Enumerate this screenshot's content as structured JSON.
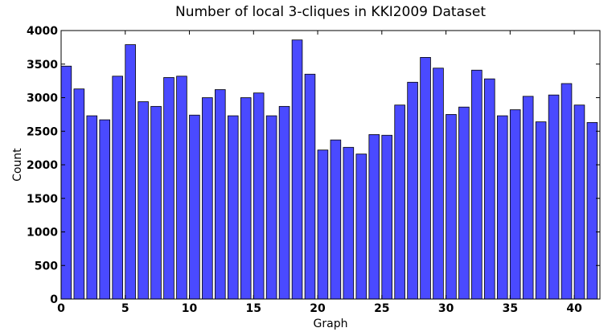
{
  "chart_data": {
    "type": "bar",
    "title": "Number of local 3-cliques in KKI2009 Dataset",
    "xlabel": "Graph",
    "ylabel": "Count",
    "xlim": [
      0,
      42
    ],
    "ylim": [
      0,
      4000
    ],
    "xticks": [
      0,
      5,
      10,
      15,
      20,
      25,
      30,
      35,
      40
    ],
    "yticks": [
      0,
      500,
      1000,
      1500,
      2000,
      2500,
      3000,
      3500,
      4000
    ],
    "bar_color": "#4a4aff",
    "bar_width": 0.8,
    "x": [
      0,
      1,
      2,
      3,
      4,
      5,
      6,
      7,
      8,
      9,
      10,
      11,
      12,
      13,
      14,
      15,
      16,
      17,
      18,
      19,
      20,
      21,
      22,
      23,
      24,
      25,
      26,
      27,
      28,
      29,
      30,
      31,
      32,
      33,
      34,
      35,
      36,
      37,
      38,
      39,
      40,
      41
    ],
    "values": [
      3470,
      3130,
      2730,
      2670,
      3320,
      3790,
      2940,
      2870,
      3300,
      3320,
      2740,
      3000,
      3120,
      2730,
      3000,
      3070,
      2730,
      2870,
      3860,
      3350,
      2220,
      2370,
      2260,
      2160,
      2450,
      2440,
      2890,
      3230,
      3600,
      3440,
      2750,
      2860,
      3410,
      3280,
      2730,
      2820,
      3020,
      2640,
      3040,
      3210,
      2890,
      2630
    ]
  }
}
